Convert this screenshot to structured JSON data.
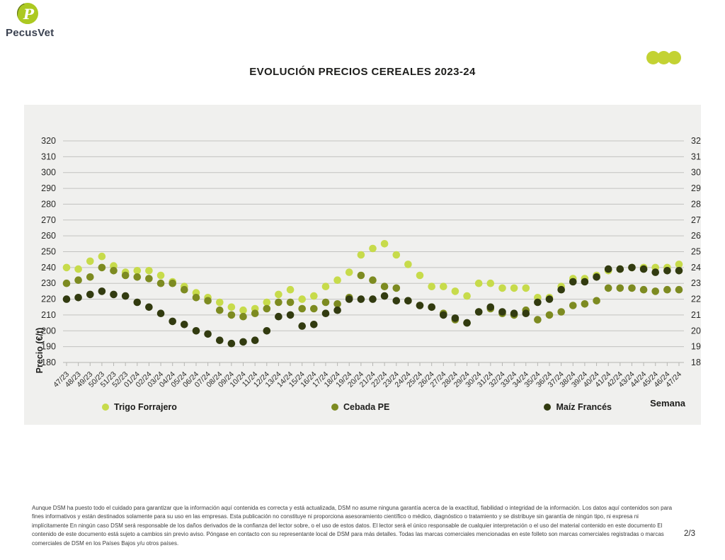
{
  "logo": {
    "text": "PecusVet",
    "monogram": "P"
  },
  "title": "EVOLUCIÓN PRECIOS CEREALES 2023-24",
  "brand": {
    "accent": "#c3d233"
  },
  "chart_data": {
    "type": "scatter",
    "title": "EVOLUCIÓN PRECIOS CEREALES 2023-24",
    "xlabel": "Semana",
    "ylabel": "Precio (€/t)",
    "ylim": [
      180,
      320
    ],
    "ytick_step": 10,
    "grid": true,
    "y_labels_both_sides": true,
    "legend_position": "bottom",
    "x": [
      "47/23",
      "48/23",
      "49/23",
      "50/23",
      "51/23",
      "52/23",
      "01/24",
      "02/24",
      "03/24",
      "04/24",
      "05/24",
      "06/24",
      "07/24",
      "08/24",
      "09/24",
      "10/24",
      "11/24",
      "12/24",
      "13/24",
      "14/24",
      "15/24",
      "16/24",
      "17/24",
      "18/24",
      "19/24",
      "20/24",
      "21/24",
      "22/24",
      "23/24",
      "24/24",
      "25/24",
      "26/24",
      "27/24",
      "28/24",
      "29/24",
      "30/24",
      "31/24",
      "32/24",
      "33/24",
      "34/24",
      "35/24",
      "36/24",
      "37/24",
      "38/24",
      "39/24",
      "40/24",
      "41/24",
      "42/24",
      "43/24",
      "44/24",
      "45/24",
      "46/24",
      "47/24"
    ],
    "series": [
      {
        "name": "Trigo Forrajero",
        "color": "#c7db4b",
        "values": [
          240,
          239,
          244,
          247,
          241,
          237,
          238,
          238,
          235,
          231,
          228,
          224,
          221,
          218,
          215,
          213,
          214,
          218,
          223,
          226,
          220,
          222,
          228,
          232,
          237,
          248,
          252,
          255,
          248,
          242,
          235,
          228,
          228,
          225,
          222,
          230,
          230,
          227,
          227,
          227,
          221,
          221,
          228,
          233,
          233,
          235,
          238,
          239,
          240,
          240,
          240,
          240,
          242
        ]
      },
      {
        "name": "Cebada PE",
        "color": "#7d8b21",
        "values": [
          230,
          232,
          234,
          240,
          238,
          235,
          234,
          233,
          230,
          230,
          226,
          221,
          219,
          213,
          210,
          209,
          211,
          214,
          218,
          218,
          214,
          214,
          218,
          217,
          221,
          235,
          232,
          228,
          227,
          219,
          216,
          215,
          211,
          207,
          205,
          212,
          214,
          211,
          210,
          213,
          207,
          210,
          212,
          216,
          217,
          219,
          227,
          227,
          227,
          226,
          225,
          226,
          226
        ]
      },
      {
        "name": "Maíz Francés",
        "color": "#323b10",
        "values": [
          220,
          221,
          223,
          225,
          223,
          222,
          218,
          215,
          211,
          206,
          204,
          200,
          198,
          194,
          192,
          193,
          194,
          200,
          209,
          210,
          203,
          204,
          211,
          213,
          220,
          220,
          220,
          222,
          219,
          219,
          216,
          215,
          210,
          208,
          205,
          212,
          215,
          212,
          211,
          211,
          218,
          220,
          226,
          231,
          231,
          234,
          239,
          239,
          240,
          239,
          237,
          238,
          238
        ]
      }
    ]
  },
  "footer": {
    "lines": [
      "Aunque DSM ha puesto todo el cuidado para garantizar que la información aquí contenida es correcta y está actualizada, DSM no asume ninguna garantía acerca de la exactitud, fiabilidad o integridad de la información. Los datos aquí contenidos son para",
      "fines informativos y están destinados solamente para su uso en las empresas. Esta publicación no constituye ni proporciona asesoramiento científico o médico, diagnóstico o tratamiento y se distribuye sin garantía de ningún tipo, ni expresa ni",
      "implícitamente En ningún caso DSM será responsable de los daños derivados de la confianza del lector sobre, o el uso de estos datos. El lector será el único responsable de cualquier interpretación o el uso del material contenido en este documento El",
      "contenido de este documento está sujeto a cambios sin previo aviso. Póngase en contacto con su representante local de DSM para más detalles. Todas las marcas comerciales mencionadas en este folleto son marcas comerciales registradas o marcas",
      "comerciales de DSM en los Países Bajos y/u otros países."
    ],
    "page_number": "2/3"
  }
}
